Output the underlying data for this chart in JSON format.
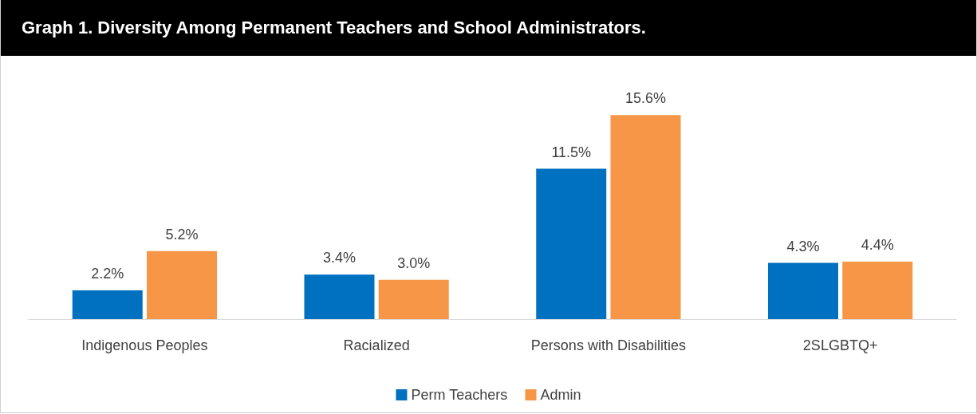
{
  "chart_data": {
    "type": "bar",
    "title": "Graph 1. Diversity Among Permanent Teachers and School Administrators.",
    "categories": [
      "Indigenous Peoples",
      "Racialized",
      "Persons with Disabilities",
      "2SLGBTQ+"
    ],
    "series": [
      {
        "name": "Perm Teachers",
        "color": "#0070c0",
        "values": [
          2.2,
          3.4,
          11.5,
          4.3
        ],
        "value_labels": [
          "2.2%",
          "3.4%",
          "11.5%",
          "4.3%"
        ]
      },
      {
        "name": "Admin",
        "color": "#f79646",
        "values": [
          5.2,
          3.0,
          15.6,
          4.4
        ],
        "value_labels": [
          "5.2%",
          "3.0%",
          "15.6%",
          "4.4%"
        ]
      }
    ],
    "legend": "bottom"
  }
}
